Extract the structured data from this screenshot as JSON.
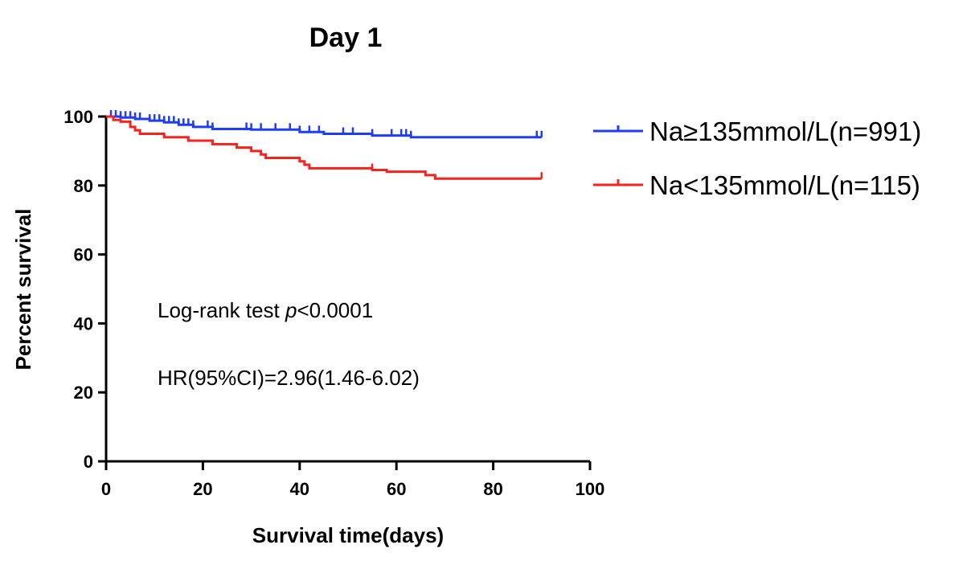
{
  "chart_data": {
    "type": "line",
    "subtype": "kaplan-meier",
    "title": "Day 1",
    "xlabel": "Survival time(days)",
    "ylabel": "Percent survival",
    "xlim": [
      0,
      100
    ],
    "ylim": [
      0,
      100
    ],
    "xticks": [
      0,
      20,
      40,
      60,
      80,
      100
    ],
    "yticks": [
      0,
      20,
      40,
      60,
      80,
      100
    ],
    "grid": false,
    "legend_position": "top-right, outside",
    "annotations": {
      "logrank_prefix": "Log-rank test ",
      "logrank_p": "p",
      "logrank_value": "<0.0001",
      "hr": "HR(95%CI)=2.96(1.46-6.02)"
    },
    "series": [
      {
        "name": "Na≥135mmol/L(n=991)",
        "color": "#1f3df5",
        "steps": [
          [
            0,
            100
          ],
          [
            3,
            99.7
          ],
          [
            6,
            99.3
          ],
          [
            9,
            98.8
          ],
          [
            12,
            98.3
          ],
          [
            15,
            97.6
          ],
          [
            18,
            97.0
          ],
          [
            22,
            96.4
          ],
          [
            30,
            96.2
          ],
          [
            40,
            95.5
          ],
          [
            45,
            95.0
          ],
          [
            55,
            94.5
          ],
          [
            63,
            94.0
          ],
          [
            90,
            94.0
          ]
        ],
        "censor_x": [
          1,
          2,
          3,
          4,
          5,
          6,
          7,
          9,
          10,
          11,
          12,
          13,
          14,
          15,
          16,
          17,
          18,
          21,
          22,
          29,
          30,
          32,
          35,
          38,
          40,
          42,
          44,
          49,
          51,
          55,
          59,
          61,
          62,
          63,
          89,
          90
        ]
      },
      {
        "name": "Na<135mmol/L(n=115)",
        "color": "#f5231d",
        "steps": [
          [
            0,
            100
          ],
          [
            1.5,
            99
          ],
          [
            3,
            98.5
          ],
          [
            5,
            97
          ],
          [
            6,
            96
          ],
          [
            7,
            95
          ],
          [
            12,
            94
          ],
          [
            17,
            93
          ],
          [
            22,
            92
          ],
          [
            27,
            91
          ],
          [
            30,
            90
          ],
          [
            32,
            89
          ],
          [
            33,
            88
          ],
          [
            40,
            87
          ],
          [
            41,
            86
          ],
          [
            42,
            85
          ],
          [
            55,
            84.5
          ],
          [
            58,
            84
          ],
          [
            66,
            83
          ],
          [
            68,
            82
          ],
          [
            90,
            82
          ]
        ],
        "censor_x": [
          55,
          90
        ]
      }
    ]
  }
}
